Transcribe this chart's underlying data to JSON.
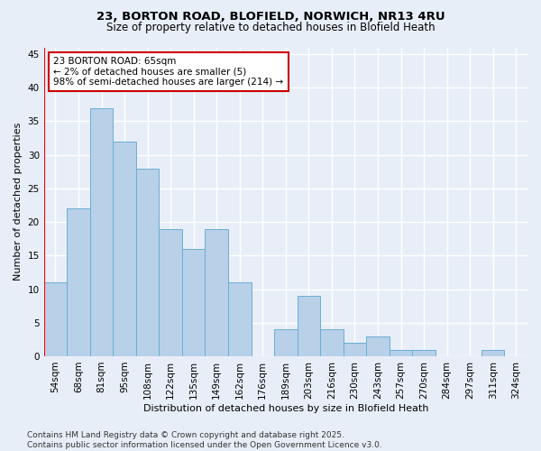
{
  "title1": "23, BORTON ROAD, BLOFIELD, NORWICH, NR13 4RU",
  "title2": "Size of property relative to detached houses in Blofield Heath",
  "xlabel": "Distribution of detached houses by size in Blofield Heath",
  "ylabel": "Number of detached properties",
  "categories": [
    "54sqm",
    "68sqm",
    "81sqm",
    "95sqm",
    "108sqm",
    "122sqm",
    "135sqm",
    "149sqm",
    "162sqm",
    "176sqm",
    "189sqm",
    "203sqm",
    "216sqm",
    "230sqm",
    "243sqm",
    "257sqm",
    "270sqm",
    "284sqm",
    "297sqm",
    "311sqm",
    "324sqm"
  ],
  "values": [
    11,
    22,
    37,
    32,
    28,
    19,
    16,
    19,
    11,
    0,
    4,
    9,
    4,
    2,
    3,
    1,
    1,
    0,
    0,
    1,
    0
  ],
  "bar_color": "#b8d0e8",
  "bar_edge_color": "#6baed6",
  "background_color": "#e8eef8",
  "grid_color": "#ffffff",
  "annotation_text": "23 BORTON ROAD: 65sqm\n← 2% of detached houses are smaller (5)\n98% of semi-detached houses are larger (214) →",
  "annotation_box_color": "#ffffff",
  "annotation_border_color": "#cc0000",
  "ylim": [
    0,
    46
  ],
  "yticks": [
    0,
    5,
    10,
    15,
    20,
    25,
    30,
    35,
    40,
    45
  ],
  "title1_fontsize": 9.5,
  "title2_fontsize": 8.5,
  "axis_label_fontsize": 8,
  "tick_fontsize": 7.5,
  "annotation_fontsize": 7.5,
  "footer_fontsize": 6.5,
  "footer_text": "Contains HM Land Registry data © Crown copyright and database right 2025.\nContains public sector information licensed under the Open Government Licence v3.0."
}
